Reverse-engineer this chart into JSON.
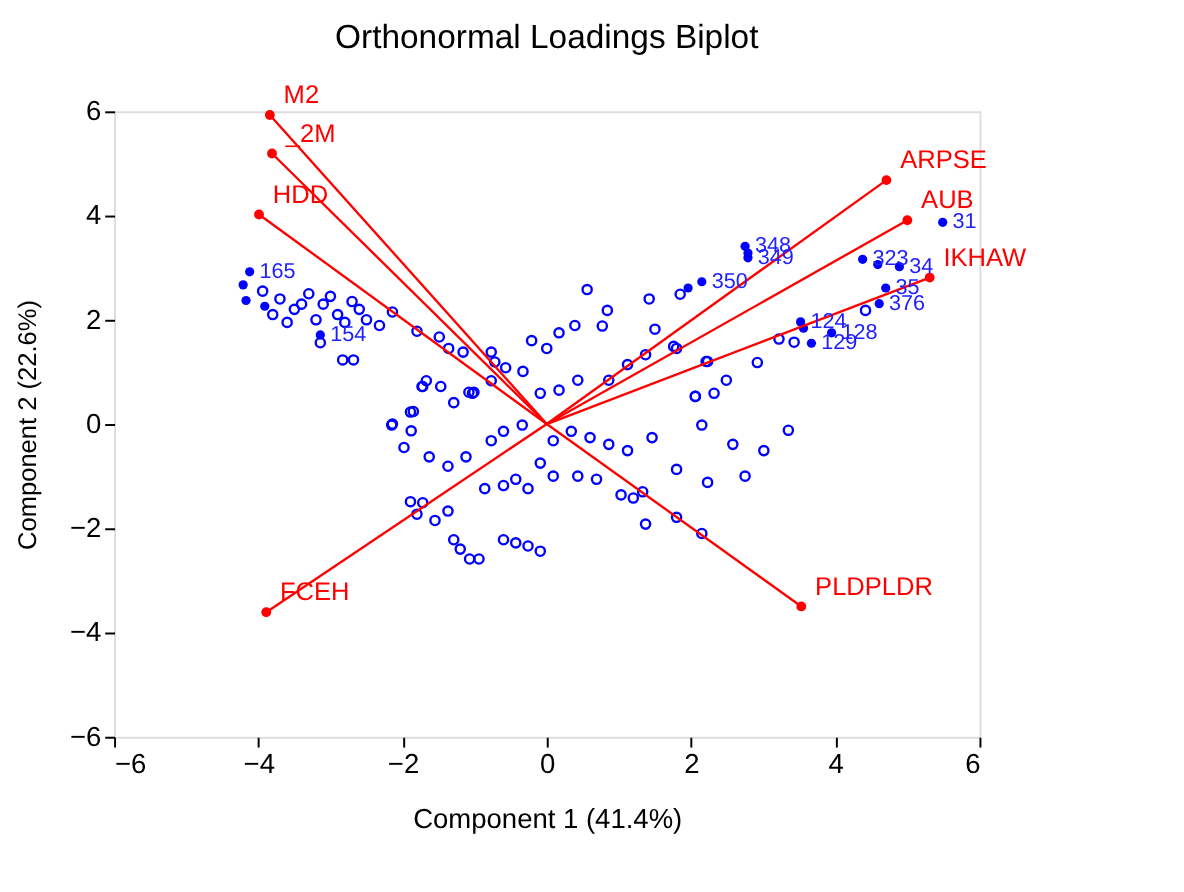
{
  "chart_data": {
    "type": "scatter",
    "title": "Orthonormal Loadings Biplot",
    "xlabel": "Component 1 (41.4%)",
    "ylabel": "Component 2 (22.6%)",
    "xlim": [
      -6,
      6
    ],
    "ylim": [
      -6,
      6
    ],
    "xticks": [
      -6,
      -4,
      -2,
      0,
      2,
      4,
      6
    ],
    "yticks": [
      -6,
      -4,
      -2,
      0,
      2,
      4,
      6
    ],
    "grid": false,
    "legend": false,
    "marker": "circle",
    "series": [
      {
        "color": "#0000ff",
        "x": [
          -3.94,
          -3.7,
          -3.5,
          -3.3,
          -3.1,
          -2.9,
          -2.7,
          -2.5,
          -2.32,
          -3.8,
          -3.6,
          -3.4,
          -3.2,
          -3.0,
          -2.8,
          -2.6,
          -3.14,
          -2.83,
          -2.68,
          -2.14,
          -1.8,
          -1.49,
          -1.36,
          -1.16,
          -0.77,
          -0.72,
          -0.57,
          -0.33,
          -0.77,
          0.0,
          -0.21,
          0.39,
          -1.67,
          -1.73,
          -1.47,
          -1.08,
          -1.01,
          -1.85,
          -2.14,
          -1.88,
          -1.72,
          -1.29,
          -1.03,
          -2.15,
          -1.89,
          -1.98,
          -1.63,
          -1.37,
          -1.12,
          -0.77,
          -0.6,
          -0.34,
          -0.09,
          0.17,
          0.43,
          0.86,
          1.12,
          1.37,
          1.8,
          2.23,
          2.06,
          2.32,
          2.49,
          2.15,
          2.58,
          3.01,
          2.75,
          2.23,
          1.8,
          1.46,
          1.12,
          0.86,
          0.6,
          0.34,
          0.09,
          -0.09,
          -0.43,
          -0.6,
          -0.86,
          -0.26,
          0.09,
          0.43,
          0.69,
          1.03,
          1.2,
          1.33,
          1.8,
          2.15,
          1.37,
          -1.89,
          -1.72,
          -1.8,
          -1.55,
          -1.37,
          -1.29,
          -1.2,
          -1.07,
          -0.94,
          -0.6,
          -0.43,
          -0.26,
          -0.09,
          0.56,
          1.42,
          0.84,
          0.77,
          1.5,
          1.76,
          2.92,
          3.22,
          2.06,
          3.35,
          2.21,
          0.17,
          1.85,
          4.42,
          3.43
        ],
        "values": [
          2.55,
          2.4,
          2.2,
          2.5,
          2.3,
          2.1,
          2.35,
          2.0,
          1.89,
          2.1,
          1.95,
          2.3,
          2.0,
          2.45,
          1.95,
          2.2,
          1.56,
          1.23,
          1.23,
          2.15,
          1.78,
          1.67,
          1.45,
          1.38,
          1.38,
          1.19,
          1.08,
          1.01,
          0.83,
          1.45,
          1.6,
          1.89,
          0.83,
          0.72,
          0.72,
          0.61,
          0.61,
          0.24,
          0.0,
          -0.13,
          0.72,
          0.41,
          0.59,
          -0.02,
          0.23,
          -0.45,
          -0.63,
          -0.81,
          -0.63,
          -0.32,
          -0.14,
          -0.02,
          0.59,
          0.65,
          0.84,
          0.84,
          1.14,
          1.33,
          1.45,
          1.2,
          0.53,
          0.59,
          0.84,
          -0.02,
          -0.39,
          -0.51,
          -1.0,
          -1.12,
          -0.87,
          -0.26,
          -0.51,
          -0.39,
          -0.26,
          -0.14,
          -0.32,
          -0.75,
          -1.06,
          -1.18,
          -1.24,
          -1.24,
          -1.0,
          -1.0,
          -1.06,
          -1.36,
          -1.42,
          -1.3,
          -1.79,
          -2.1,
          -1.92,
          -1.49,
          -1.51,
          -1.73,
          -1.85,
          -1.67,
          -2.22,
          -2.4,
          -2.59,
          -2.59,
          -2.22,
          -2.28,
          -2.34,
          -2.44,
          2.58,
          2.4,
          2.18,
          1.88,
          1.82,
          1.49,
          1.18,
          1.63,
          0.53,
          -0.12,
          1.2,
          1.75,
          2.49,
          2.18,
          1.57
        ]
      },
      {
        "color": "#0000ff",
        "x": [
          -4.12,
          -4.21,
          -4.17,
          -3.91,
          -3.14,
          2.75,
          2.79,
          2.79,
          2.15,
          1.96,
          4.38,
          4.59,
          4.89,
          5.49,
          4.7,
          4.61,
          3.52,
          3.56,
          3.95,
          3.67
        ],
        "values": [
          2.92,
          2.67,
          2.37,
          2.26,
          1.71,
          3.41,
          3.28,
          3.19,
          2.73,
          2.61,
          3.16,
          3.06,
          3.02,
          3.87,
          2.61,
          2.31,
          1.96,
          1.84,
          1.75,
          1.55
        ]
      },
      {
        "type": "line",
        "name": "M2",
        "color": "#ff0000",
        "x": [
          0,
          -3.84
        ],
        "values": [
          0,
          5.93
        ]
      },
      {
        "type": "line",
        "name": "_2M",
        "color": "#ff0000",
        "x": [
          0,
          -3.81
        ],
        "values": [
          0,
          5.19
        ]
      },
      {
        "type": "line",
        "name": "HDD",
        "color": "#ff0000",
        "x": [
          0,
          -3.99
        ],
        "values": [
          0,
          4.02
        ]
      },
      {
        "type": "line",
        "name": "ARPSE",
        "color": "#ff0000",
        "x": [
          0,
          4.71
        ],
        "values": [
          0,
          4.68
        ]
      },
      {
        "type": "line",
        "name": "AUB",
        "color": "#ff0000",
        "x": [
          0,
          5.0
        ],
        "values": [
          0,
          3.91
        ]
      },
      {
        "type": "line",
        "name": "IKHAW",
        "color": "#ff0000",
        "x": [
          0,
          5.31
        ],
        "values": [
          0,
          2.81
        ]
      },
      {
        "type": "line",
        "name": "FCEH",
        "color": "#ff0000",
        "x": [
          0,
          -3.89
        ],
        "values": [
          0,
          -3.61
        ]
      },
      {
        "type": "line",
        "name": "PLDPLDR",
        "color": "#ff0000",
        "x": [
          0,
          3.53
        ],
        "values": [
          0,
          -3.5
        ]
      }
    ],
    "annotations": [
      {
        "text": "165",
        "x": -4.12,
        "y": 2.92
      },
      {
        "text": "154",
        "x": -3.14,
        "y": 1.71
      },
      {
        "text": "348",
        "x": 2.75,
        "y": 3.41
      },
      {
        "text": "349",
        "x": 2.79,
        "y": 3.19
      },
      {
        "text": "350",
        "x": 2.15,
        "y": 2.73
      },
      {
        "text": "323",
        "x": 4.38,
        "y": 3.16
      },
      {
        "text": "34",
        "x": 4.89,
        "y": 3.02
      },
      {
        "text": "31",
        "x": 5.49,
        "y": 3.87
      },
      {
        "text": "35",
        "x": 4.7,
        "y": 2.61
      },
      {
        "text": "376",
        "x": 4.61,
        "y": 2.31
      },
      {
        "text": "124",
        "x": 3.52,
        "y": 1.96
      },
      {
        "text": "128",
        "x": 3.95,
        "y": 1.75
      },
      {
        "text": "129",
        "x": 3.67,
        "y": 1.55
      }
    ]
  }
}
